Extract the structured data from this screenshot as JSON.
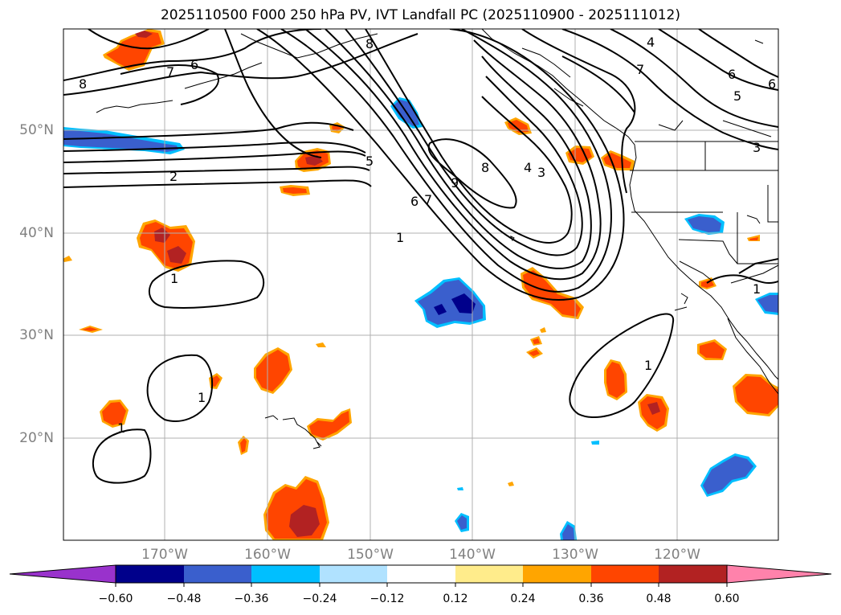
{
  "title": "2025110500 F000 250 hPa PV, IVT Landfall PC (2025110900 - 2025111012)",
  "axes": {
    "lat_ticks": [
      "50°N",
      "40°N",
      "30°N",
      "20°N"
    ],
    "lon_ticks": [
      "170°W",
      "160°W",
      "150°W",
      "140°W",
      "130°W",
      "120°W"
    ]
  },
  "contour_labels": [
    "8",
    "7",
    "6",
    "8",
    "4",
    "7",
    "6",
    "5",
    "6",
    "3",
    "5",
    "2",
    "9",
    "8",
    "4",
    "3",
    "6",
    "7",
    "1",
    "1",
    "1",
    "1",
    "1",
    "1"
  ],
  "colorbar": {
    "labels": [
      "−0.60",
      "−0.48",
      "−0.36",
      "−0.24",
      "−0.12",
      "0.12",
      "0.24",
      "0.36",
      "0.48",
      "0.60"
    ],
    "colors": [
      "#9932cc",
      "#00008b",
      "#3a5fcd",
      "#00bfff",
      "#b0e2ff",
      "#ffffff",
      "#ffec8b",
      "#ffa500",
      "#ff4500",
      "#b22222",
      "#ff82ab"
    ]
  }
}
